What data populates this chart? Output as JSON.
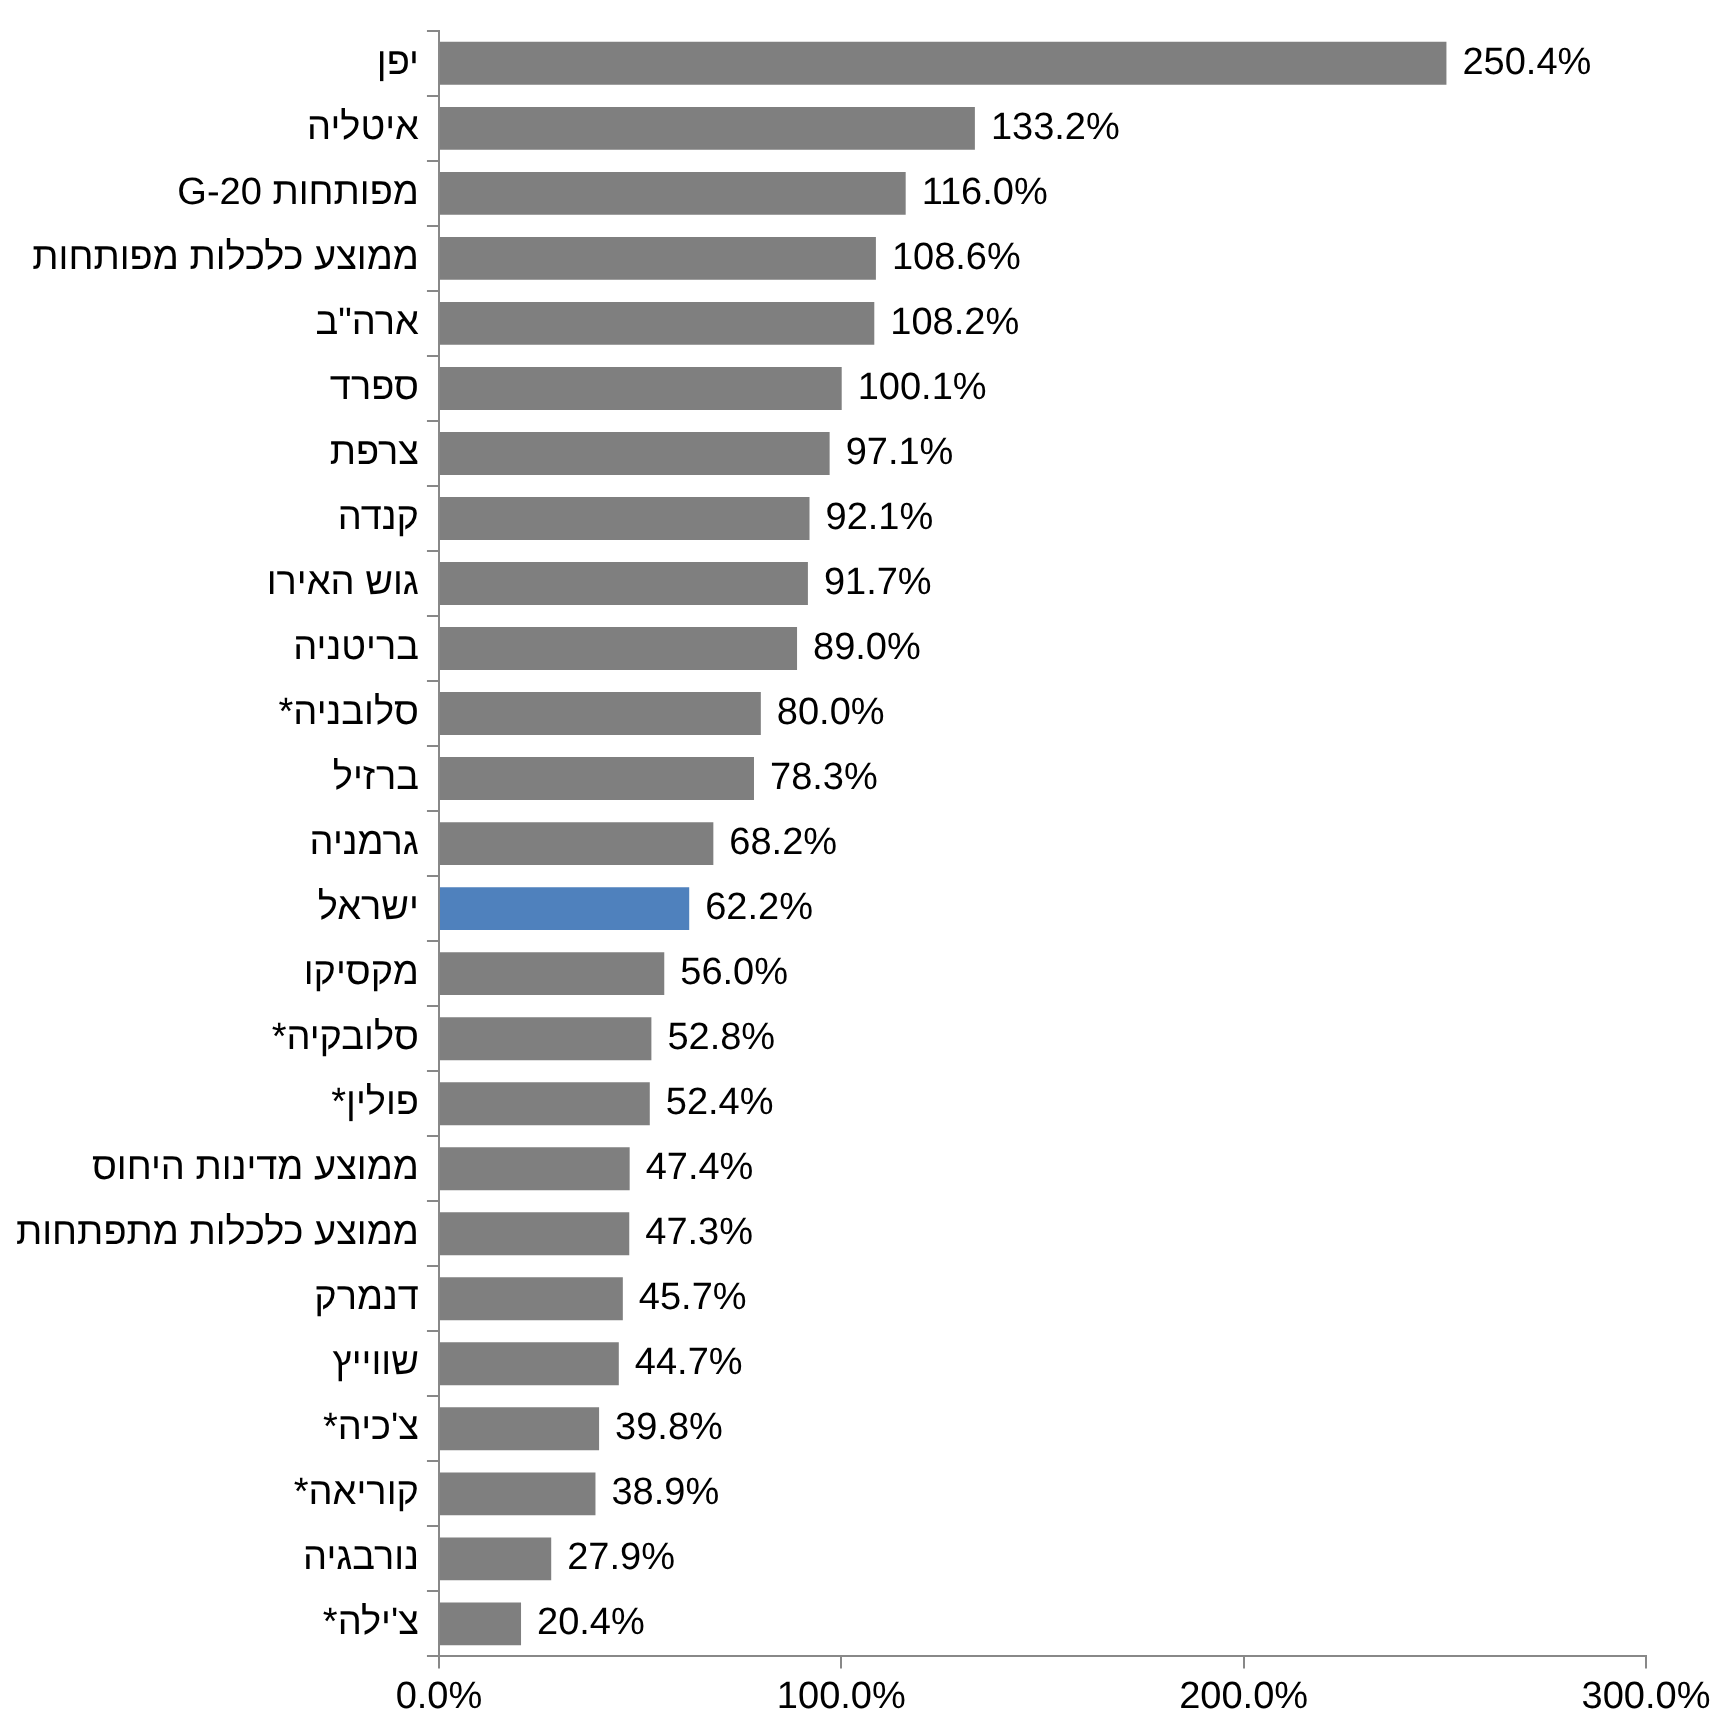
{
  "chart_data": {
    "type": "bar",
    "orientation": "horizontal",
    "categories": [
      "יפן",
      "איטליה",
      "מפותחות G-20",
      "ממוצע כלכלות מפותחות",
      "ארה\"ב",
      "ספרד",
      "צרפת",
      "קנדה",
      "גוש האירו",
      "בריטניה",
      "סלובניה*",
      "ברזיל",
      "גרמניה",
      "ישראל",
      "מקסיקו",
      "סלובקיה*",
      "פולין*",
      "ממוצע מדינות היחוס",
      "ממוצע כלכלות מתפתחות",
      "דנמרק",
      "שווייץ",
      "צ'כיה*",
      "קוריאה*",
      "נורבגיה",
      "צ'ילה*"
    ],
    "values": [
      250.4,
      133.2,
      116.0,
      108.6,
      108.2,
      100.1,
      97.1,
      92.1,
      91.7,
      89.0,
      80.0,
      78.3,
      68.2,
      62.2,
      56.0,
      52.8,
      52.4,
      47.4,
      47.3,
      45.7,
      44.7,
      39.8,
      38.9,
      27.9,
      20.4
    ],
    "value_labels": [
      "250.4%",
      "133.2%",
      "116.0%",
      "108.6%",
      "108.2%",
      "100.1%",
      "97.1%",
      "92.1%",
      "91.7%",
      "89.0%",
      "80.0%",
      "78.3%",
      "68.2%",
      "62.2%",
      "56.0%",
      "52.8%",
      "52.4%",
      "47.4%",
      "47.3%",
      "45.7%",
      "44.7%",
      "39.8%",
      "38.9%",
      "27.9%",
      "20.4%"
    ],
    "colors": [
      "#7f7f7f",
      "#7f7f7f",
      "#7f7f7f",
      "#7f7f7f",
      "#7f7f7f",
      "#7f7f7f",
      "#7f7f7f",
      "#7f7f7f",
      "#7f7f7f",
      "#7f7f7f",
      "#7f7f7f",
      "#7f7f7f",
      "#7f7f7f",
      "#4f81bd",
      "#7f7f7f",
      "#7f7f7f",
      "#7f7f7f",
      "#7f7f7f",
      "#7f7f7f",
      "#7f7f7f",
      "#7f7f7f",
      "#7f7f7f",
      "#7f7f7f",
      "#7f7f7f",
      "#7f7f7f"
    ],
    "xlim": [
      0,
      300
    ],
    "xticks": [
      {
        "value": 0,
        "label": "0.0%"
      },
      {
        "value": 100,
        "label": "100.0%"
      },
      {
        "value": 200,
        "label": "200.0%"
      },
      {
        "value": 300,
        "label": "300.0%"
      }
    ],
    "grid": false,
    "legend": false
  }
}
